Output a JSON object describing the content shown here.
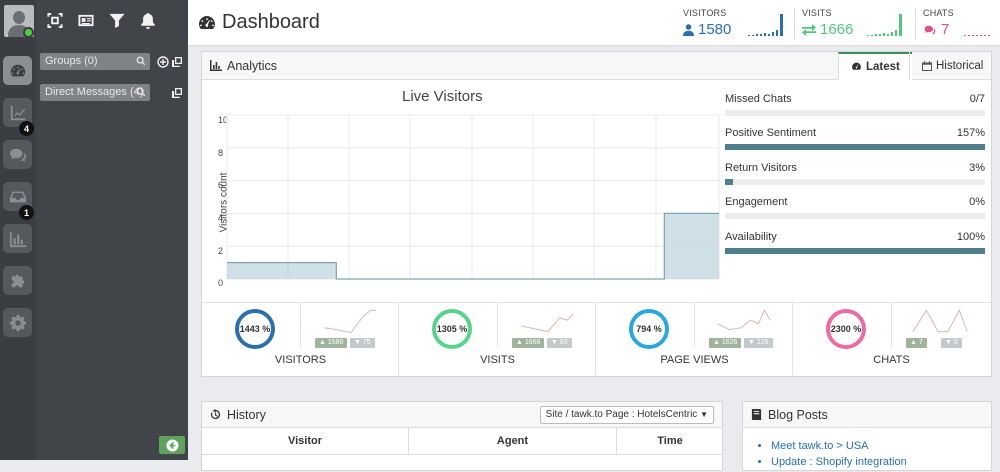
{
  "app": {
    "title": "Dashboard"
  },
  "header_stats": [
    {
      "label": "VISITORS",
      "value": "1580",
      "color": "#2a6fb0",
      "icon": "user-icon"
    },
    {
      "label": "VISITS",
      "value": "1666",
      "color": "#4fc87a",
      "icon": "exchange-icon"
    },
    {
      "label": "CHATS",
      "value": "7",
      "color": "#e24f8c",
      "icon": "comments-icon"
    }
  ],
  "sidebar": {
    "badges": {
      "analytics": "4",
      "inbox": "1"
    },
    "groups_label": "Groups (0)",
    "dm_label": "Direct Messages (4)"
  },
  "analytics": {
    "title": "Analytics",
    "tabs": [
      {
        "label": "Latest",
        "active": true
      },
      {
        "label": "Historical",
        "active": false
      }
    ],
    "metrics": [
      {
        "label": "Missed Chats",
        "value": "0/7",
        "pct": 0
      },
      {
        "label": "Positive Sentiment",
        "value": "157%",
        "pct": 100
      },
      {
        "label": "Return Visitors",
        "value": "3%",
        "pct": 3
      },
      {
        "label": "Engagement",
        "value": "0%",
        "pct": 0
      },
      {
        "label": "Availability",
        "value": "100%",
        "pct": 100
      }
    ],
    "kpis": [
      {
        "percent": "1443 %",
        "name": "VISITORS",
        "up": "1580",
        "down": "75",
        "color": "#2a6fb0"
      },
      {
        "percent": "1305 %",
        "name": "VISITS",
        "up": "1666",
        "down": "83",
        "color": "#55d48a"
      },
      {
        "percent": "794 %",
        "name": "PAGE VIEWS",
        "up": "1626",
        "down": "126",
        "color": "#29a8e0"
      },
      {
        "percent": "2300 %",
        "name": "CHATS",
        "up": "7",
        "down": "0",
        "color": "#ef6aa5"
      }
    ]
  },
  "chart_data": {
    "type": "area",
    "title": "Live Visitors",
    "ylabel": "Visitors count",
    "xlabel": "",
    "ylim": [
      0,
      10
    ],
    "yticks": [
      "10",
      "8",
      "6",
      "4",
      "2",
      "0"
    ],
    "x": [
      0,
      1,
      2,
      3,
      4,
      5,
      6,
      7,
      8
    ],
    "values": [
      1,
      1,
      0,
      0,
      0,
      0,
      0,
      0,
      4
    ],
    "color": "#bcd3dd"
  },
  "history": {
    "title": "History",
    "filter": "Site / tawk.to Page : HotelsCentric",
    "columns": [
      "Visitor",
      "Agent",
      "Time"
    ]
  },
  "blog": {
    "title": "Blog Posts",
    "items": [
      "Meet tawk.to > USA",
      "Update : Shopify integration"
    ]
  }
}
